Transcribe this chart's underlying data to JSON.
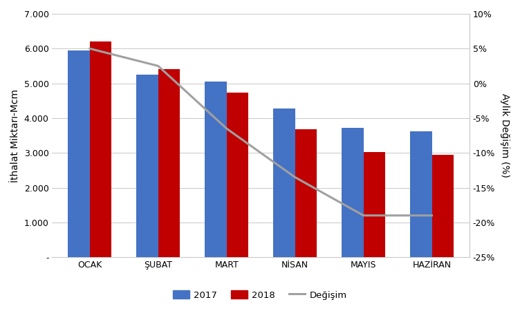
{
  "categories": [
    "OCAK",
    "ŞUBAT",
    "MART",
    "NİSAN",
    "MAYIS",
    "HAZİRAN"
  ],
  "values_2017": [
    5950,
    5250,
    5050,
    4275,
    3725,
    3625
  ],
  "values_2018": [
    6200,
    5400,
    4725,
    3675,
    3025,
    2950
  ],
  "change": [
    5.0,
    2.5,
    -6.5,
    -13.5,
    -19.0,
    -19.0
  ],
  "bar_color_2017": "#4472C4",
  "bar_color_2018": "#C00000",
  "line_color": "#A0A0A0",
  "ylabel_left": "İthalat Miktarı-Mcm",
  "ylabel_right": "Aylık Değişim (%)",
  "ylim_left": [
    0,
    7000
  ],
  "ylim_right": [
    -25,
    10
  ],
  "yticks_left": [
    0,
    1000,
    2000,
    3000,
    4000,
    5000,
    6000,
    7000
  ],
  "ytick_labels_left": [
    "-",
    "1.000",
    "2.000",
    "3.000",
    "4.000",
    "5.000",
    "6.000",
    "7.000"
  ],
  "yticks_right": [
    -25,
    -20,
    -15,
    -10,
    -5,
    0,
    5,
    10
  ],
  "ytick_labels_right": [
    "-25%",
    "-20%",
    "-15%",
    "-10%",
    "-5%",
    "0%",
    "5%",
    "10%"
  ],
  "legend_labels": [
    "2017",
    "2018",
    "Değişim"
  ],
  "bar_width": 0.32,
  "background_color": "#FFFFFF",
  "grid_color": "#C8C8C8",
  "font_size_ticks": 9,
  "font_size_ylabel": 10
}
